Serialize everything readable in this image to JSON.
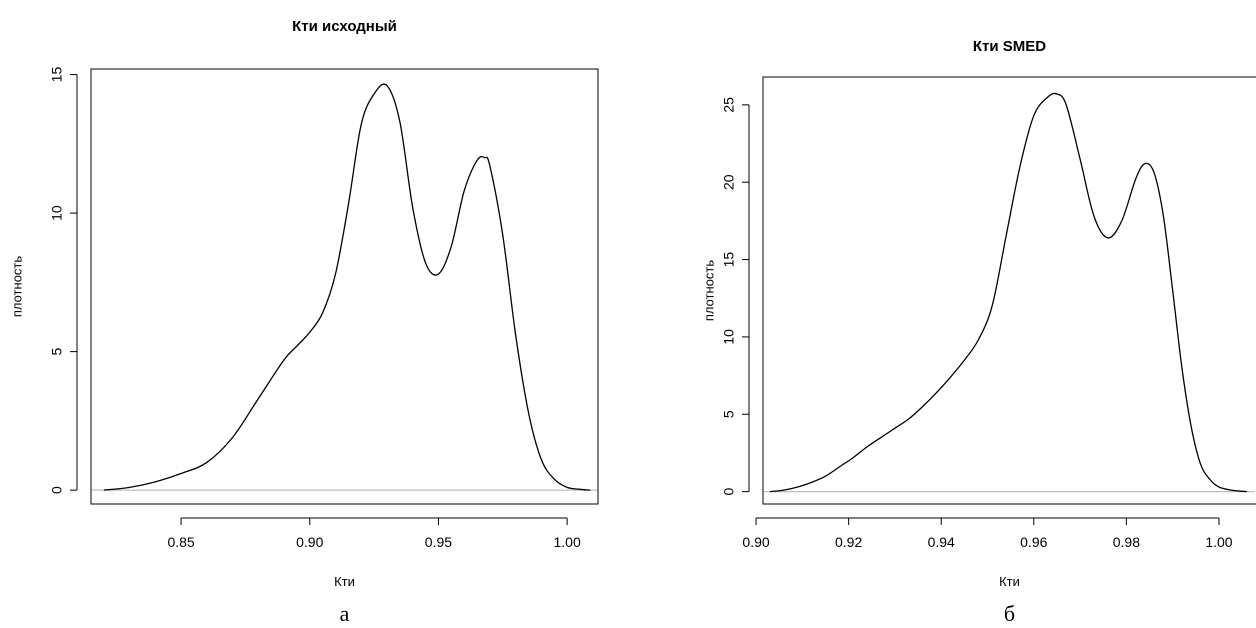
{
  "chart_data": [
    {
      "type": "line",
      "title": "Кти исходный",
      "xlabel": "Кти",
      "ylabel": "плотность",
      "sublabel": "а",
      "xlim": [
        0.815,
        1.012
      ],
      "ylim": [
        -0.5,
        15.2
      ],
      "xticks": [
        0.85,
        0.9,
        0.95,
        1.0
      ],
      "xtick_labels": [
        "0.85",
        "0.90",
        "0.95",
        "1.00"
      ],
      "yticks": [
        0,
        5,
        10,
        15
      ],
      "ytick_labels": [
        "0",
        "5",
        "10",
        "15"
      ],
      "grid": false,
      "legend": "none",
      "baseline": 0,
      "series": [
        {
          "x": [
            0.82,
            0.83,
            0.84,
            0.85,
            0.86,
            0.87,
            0.88,
            0.89,
            0.895,
            0.9,
            0.905,
            0.91,
            0.915,
            0.92,
            0.925,
            0.93,
            0.935,
            0.94,
            0.945,
            0.95,
            0.955,
            0.96,
            0.965,
            0.968,
            0.97,
            0.975,
            0.98,
            0.985,
            0.99,
            0.995,
            1.0,
            1.005,
            1.009
          ],
          "y": [
            0.0,
            0.1,
            0.3,
            0.6,
            1.0,
            1.9,
            3.3,
            4.7,
            5.2,
            5.7,
            6.4,
            7.8,
            10.3,
            13.2,
            14.3,
            14.6,
            13.3,
            10.2,
            8.2,
            7.8,
            8.8,
            10.8,
            11.9,
            12.0,
            11.7,
            9.2,
            5.6,
            2.8,
            1.1,
            0.4,
            0.1,
            0.03,
            0.0
          ]
        }
      ]
    },
    {
      "type": "line",
      "title": "Кти SMED",
      "xlabel": "Кти",
      "ylabel": "плотность",
      "sublabel": "б",
      "xlim": [
        0.9015,
        1.008
      ],
      "ylim": [
        -0.8,
        26.8
      ],
      "xticks": [
        0.9,
        0.92,
        0.94,
        0.96,
        0.98,
        1.0
      ],
      "xtick_labels": [
        "0.90",
        "0.92",
        "0.94",
        "0.96",
        "0.98",
        "1.00"
      ],
      "yticks": [
        0,
        5,
        10,
        15,
        20,
        25
      ],
      "ytick_labels": [
        "0",
        "5",
        "10",
        "15",
        "20",
        "25"
      ],
      "grid": false,
      "legend": "none",
      "baseline": 0,
      "series": [
        {
          "x": [
            0.903,
            0.906,
            0.909,
            0.912,
            0.915,
            0.918,
            0.921,
            0.924,
            0.927,
            0.93,
            0.933,
            0.936,
            0.939,
            0.942,
            0.945,
            0.948,
            0.951,
            0.954,
            0.957,
            0.96,
            0.963,
            0.965,
            0.967,
            0.97,
            0.973,
            0.976,
            0.979,
            0.982,
            0.984,
            0.986,
            0.988,
            0.99,
            0.992,
            0.994,
            0.996,
            0.998,
            1.0,
            1.003,
            1.006
          ],
          "y": [
            0.0,
            0.1,
            0.3,
            0.6,
            1.0,
            1.6,
            2.2,
            2.9,
            3.5,
            4.1,
            4.7,
            5.5,
            6.4,
            7.4,
            8.5,
            9.8,
            12.0,
            16.5,
            21.0,
            24.3,
            25.5,
            25.7,
            25.0,
            21.5,
            17.8,
            16.4,
            17.5,
            20.2,
            21.2,
            20.6,
            17.8,
            13.0,
            8.0,
            4.2,
            1.8,
            0.8,
            0.3,
            0.08,
            0.0
          ]
        }
      ]
    }
  ]
}
